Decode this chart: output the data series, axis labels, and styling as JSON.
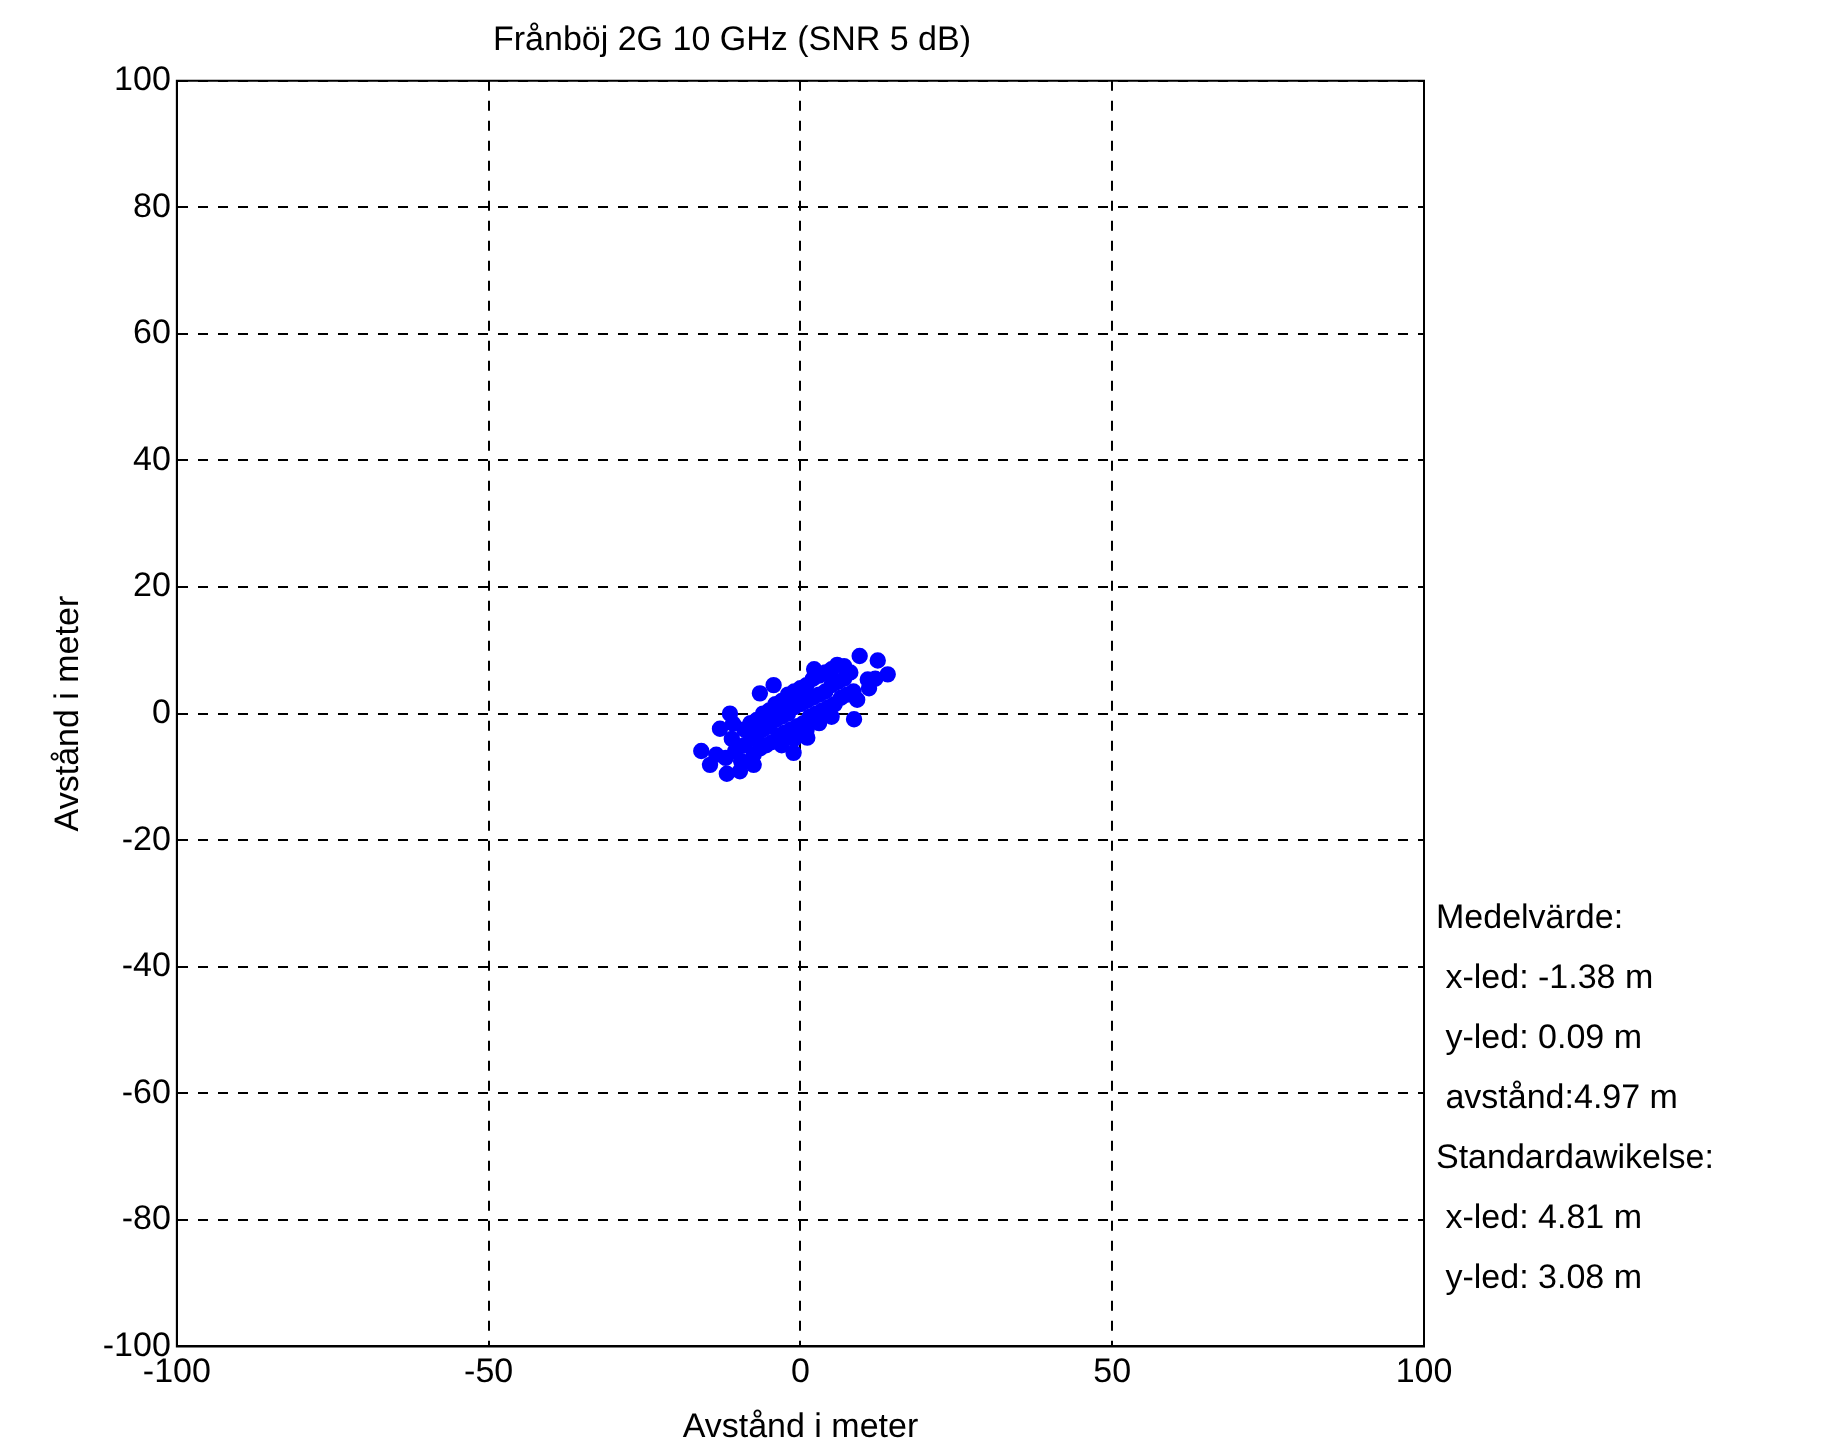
{
  "chart_data": {
    "type": "scatter",
    "title": "Frånböj 2G 10 GHz (SNR 5 dB)",
    "xlabel": "Avstånd i meter",
    "ylabel": "Avstånd i meter",
    "annotations": [
      "Medelvärde:",
      " x-led: -1.38 m",
      " y-led: 0.09 m",
      " avstånd:4.97 m",
      "Standardawikelse:",
      " x-led: 4.81 m",
      " y-led: 3.08 m"
    ],
    "series": [
      {
        "color": "#0000ff",
        "x": [
          -15.9,
          -14.5,
          -11.8,
          -9.7,
          -7.5,
          -1.1,
          1.1,
          8.6,
          9.1,
          10.8,
          14,
          12.4,
          9.5,
          5.9,
          2.2,
          -4.3,
          -6.5,
          -11.3,
          -12.9,
          -10.8,
          -13.5,
          -12,
          -10.5,
          -9,
          -8,
          -7,
          -6,
          -5,
          -4,
          -3,
          -2,
          -1,
          0,
          1,
          2,
          3,
          4,
          5,
          6,
          7,
          8,
          -11,
          -9,
          -8,
          -7,
          -6,
          -5,
          -4,
          -3,
          -2,
          -1,
          0,
          1,
          2,
          3,
          4,
          5,
          7,
          -9.5,
          -7.5,
          -6.5,
          -5.5,
          -4.5,
          -3.5,
          -2.5,
          -1.5,
          -0.5,
          0.5,
          1.5,
          2.5,
          3.5,
          4.5,
          5.5,
          6.5,
          7.5,
          8.5,
          -3,
          -1,
          1,
          3,
          5,
          11,
          12
        ],
        "values": [
          -5.9,
          -8.1,
          -9.5,
          -9.1,
          -8.1,
          -6.2,
          -3.8,
          -0.9,
          2.2,
          5.4,
          6.2,
          8.4,
          9.1,
          7.7,
          7,
          4.5,
          3.2,
          0,
          -2.4,
          -1.6,
          -6.5,
          -7,
          -6,
          -5,
          -4,
          -3.5,
          -2.5,
          -2,
          -1,
          -0.5,
          0,
          1,
          1.5,
          2,
          2.5,
          3,
          3.5,
          4.5,
          5,
          5.5,
          6.5,
          -4,
          -2.5,
          -1.5,
          -1,
          0,
          0.5,
          1.5,
          2,
          3,
          3.5,
          4,
          4.5,
          5.5,
          6,
          6.5,
          7,
          7.5,
          -7.5,
          -6.5,
          -5.5,
          -5,
          -4.5,
          -3.5,
          -3,
          -2.5,
          -2,
          -1.5,
          -0.5,
          0,
          0.5,
          1,
          1.5,
          2.5,
          3,
          3.5,
          -5,
          -4,
          -2.5,
          -1.5,
          -0.5,
          4,
          5.5
        ]
      }
    ],
    "xlim": [
      -100,
      100
    ],
    "xticks": [
      -100,
      -50,
      0,
      50,
      100
    ],
    "ylim": [
      -100,
      100
    ],
    "yticks": [
      -100,
      -80,
      -60,
      -40,
      -20,
      0,
      20,
      40,
      60,
      80,
      100
    ],
    "grid": true,
    "legend": false,
    "marker": "circle"
  }
}
